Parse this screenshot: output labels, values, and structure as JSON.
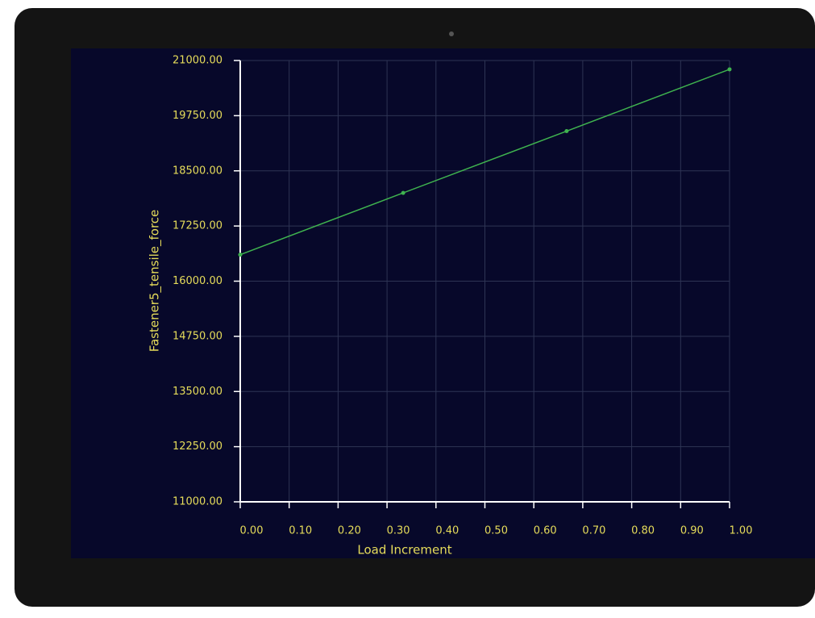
{
  "chart_data": {
    "type": "line",
    "x_label": "Load Increment",
    "y_label": "Fastener5_tensile_force",
    "x": [
      0,
      0.333,
      0.667,
      1.0
    ],
    "series": [
      {
        "name": "Fastener5_tensile_force",
        "color": "#3fb34f",
        "values": [
          16600,
          18000,
          19400,
          20800
        ]
      }
    ],
    "xlim": [
      0,
      1.0
    ],
    "ylim": [
      11000,
      21000
    ],
    "xticks": [
      {
        "value": 0,
        "label": "0.00"
      },
      {
        "value": 0.1,
        "label": "0.10"
      },
      {
        "value": 0.2,
        "label": "0.20"
      },
      {
        "value": 0.3,
        "label": "0.30"
      },
      {
        "value": 0.4,
        "label": "0.40"
      },
      {
        "value": 0.5,
        "label": "0.50"
      },
      {
        "value": 0.6,
        "label": "0.60"
      },
      {
        "value": 0.7,
        "label": "0.70"
      },
      {
        "value": 0.8,
        "label": "0.80"
      },
      {
        "value": 0.9,
        "label": "0.90"
      },
      {
        "value": 1.0,
        "label": "1.00"
      }
    ],
    "yticks": [
      {
        "value": 11000,
        "label": "11000.00"
      },
      {
        "value": 12250,
        "label": "12250.00"
      },
      {
        "value": 13500,
        "label": "13500.00"
      },
      {
        "value": 14750,
        "label": "14750.00"
      },
      {
        "value": 16000,
        "label": "16000.00"
      },
      {
        "value": 17250,
        "label": "17250.00"
      },
      {
        "value": 18500,
        "label": "18500.00"
      },
      {
        "value": 19750,
        "label": "19750.00"
      },
      {
        "value": 21000,
        "label": "21000.00"
      }
    ],
    "grid": true
  }
}
